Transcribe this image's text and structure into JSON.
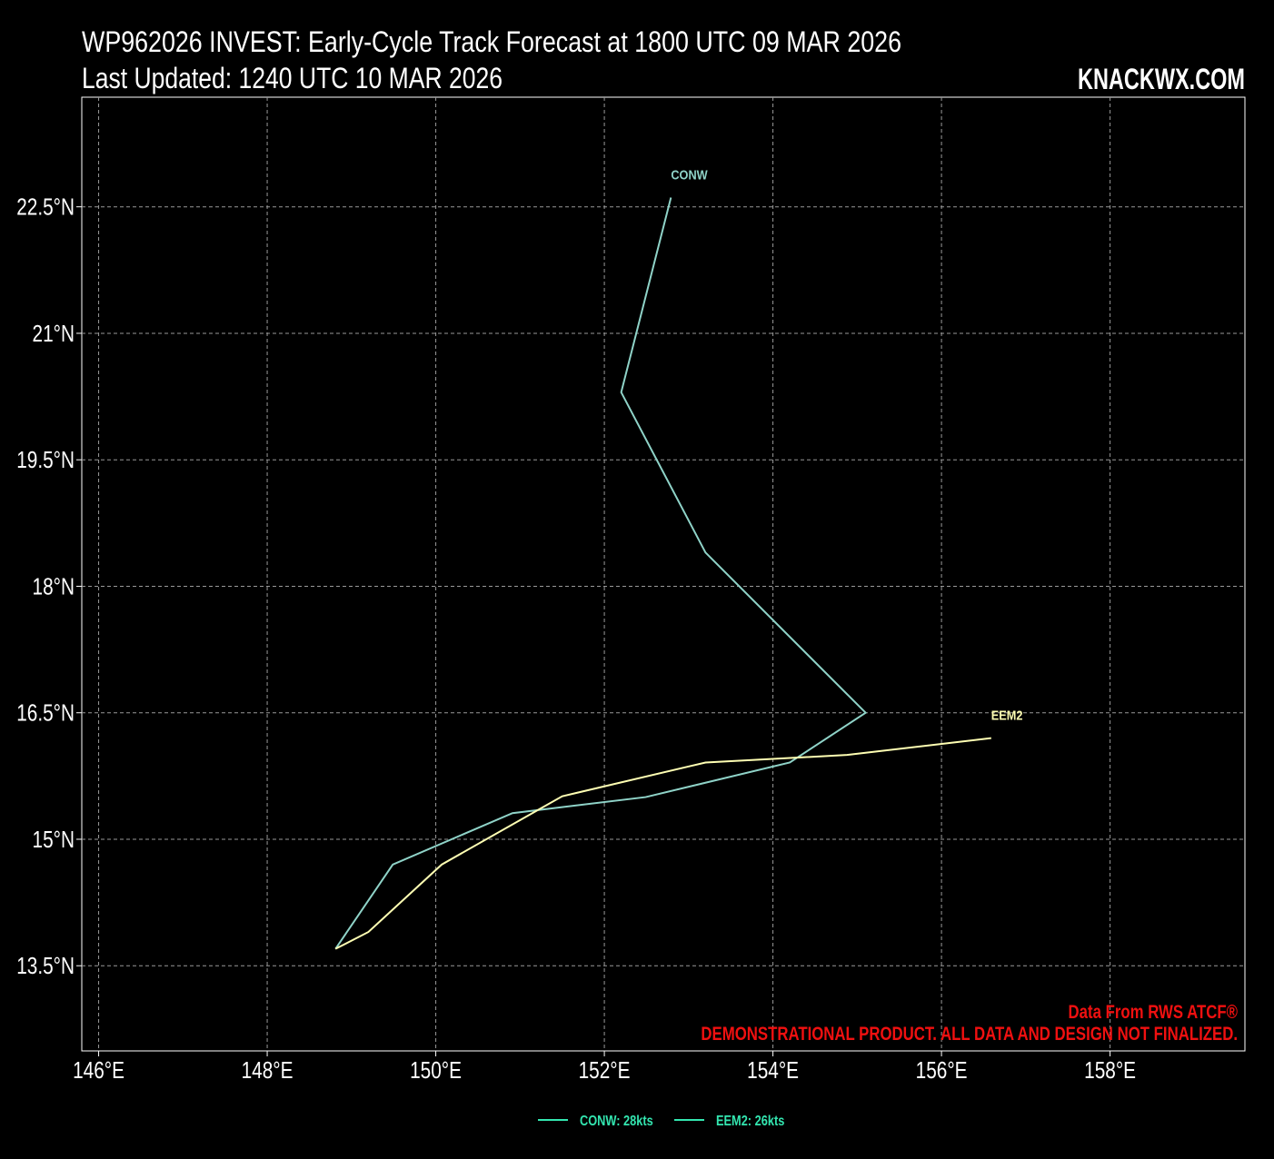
{
  "chart_data": {
    "type": "track",
    "title": "WP962026 INVEST: Early-Cycle Track Forecast at 1800 UTC 09 MAR 2026",
    "subtitle": "Last Updated: 1240 UTC 10 MAR 2026",
    "brand": "KNACKWX.COM",
    "notes": [
      "Data From RWS ATCF®",
      "DEMONSTRATIONAL PRODUCT. ALL DATA AND DESIGN NOT FINALIZED."
    ],
    "note_color": "#f01010",
    "xlim": [
      145.8,
      159.6
    ],
    "ylim": [
      12.49,
      23.8
    ],
    "xticks": [
      {
        "value": 146,
        "label": "146°E"
      },
      {
        "value": 148,
        "label": "148°E"
      },
      {
        "value": 150,
        "label": "150°E"
      },
      {
        "value": 152,
        "label": "152°E"
      },
      {
        "value": 154,
        "label": "154°E"
      },
      {
        "value": 156,
        "label": "156°E"
      },
      {
        "value": 158,
        "label": "158°E"
      }
    ],
    "yticks": [
      {
        "value": 13.5,
        "label": "13.5°N"
      },
      {
        "value": 15,
        "label": "15°N"
      },
      {
        "value": 16.5,
        "label": "16.5°N"
      },
      {
        "value": 18,
        "label": "18°N"
      },
      {
        "value": 19.5,
        "label": "19.5°N"
      },
      {
        "value": 21,
        "label": "21°N"
      },
      {
        "value": 22.5,
        "label": "22.5°N"
      }
    ],
    "grid": true,
    "series": [
      {
        "name": "CONW",
        "legend": "CONW: 28kts",
        "color": "#8fd3c8",
        "legend_color": "#33e6b0",
        "x": [
          152.79,
          152.2,
          153.2,
          155.1,
          154.2,
          152.49,
          150.91,
          149.49,
          148.81
        ],
        "values": [
          22.61,
          20.3,
          18.4,
          16.5,
          15.91,
          15.5,
          15.31,
          14.7,
          13.7
        ]
      },
      {
        "name": "EEM2",
        "legend": "EEM2: 26kts",
        "color": "#ffffb3",
        "legend_color": "#33e6b0",
        "x": [
          156.59,
          154.88,
          153.2,
          151.5,
          150.07,
          149.2,
          148.81
        ],
        "values": [
          16.2,
          16.0,
          15.91,
          15.51,
          14.7,
          13.9,
          13.7
        ]
      }
    ]
  }
}
